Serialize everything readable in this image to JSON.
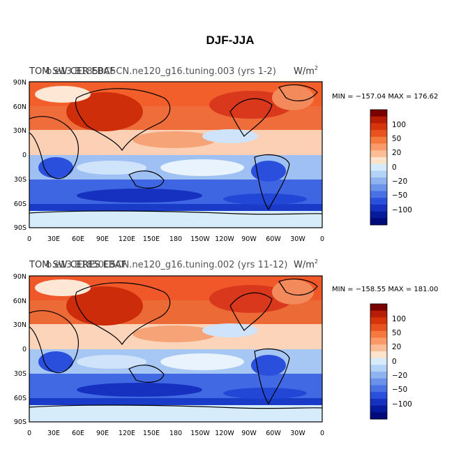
{
  "figure_title": "DJF-JJA",
  "colorbar_ticks": [
    "100",
    "50",
    "20",
    "0",
    "−20",
    "−50",
    "−100"
  ],
  "colorbar_colors": [
    "#7a0000",
    "#b71c05",
    "#d8340b",
    "#e8521f",
    "#f47a3f",
    "#f99a68",
    "#fcbd96",
    "#fde2cc",
    "#d7ecfb",
    "#b3d3f6",
    "#8fb3f0",
    "#6b93ec",
    "#4a72e6",
    "#2a4fdc",
    "#1630c0",
    "#061a9c",
    "#000a7a"
  ],
  "lat_labels": [
    "90N",
    "60N",
    "30N",
    "0",
    "30S",
    "60S",
    "90S"
  ],
  "lon_labels": [
    "0",
    "30E",
    "60E",
    "90E",
    "120E",
    "150E",
    "180",
    "150W",
    "120W",
    "90W",
    "60W",
    "30W",
    "0"
  ],
  "panels": [
    {
      "header_left": "TOM SW CER EBAF",
      "header_mid": "b.e13.B1850C5CN.ne120_g16.tuning.003 (yrs 1-2)",
      "header_right": "W/m",
      "header_sup": "2",
      "stats": "MIN = −157.04  MAX = 176.62"
    },
    {
      "header_left": "TOM SW CERES EBAF",
      "header_mid": "b.e13.B1850C5CN.ne120_g16.tuning.002 (yrs 11-12)",
      "header_right": "W/m",
      "header_sup": "2",
      "stats": "MIN = −158.55  MAX = 181.00"
    }
  ]
}
